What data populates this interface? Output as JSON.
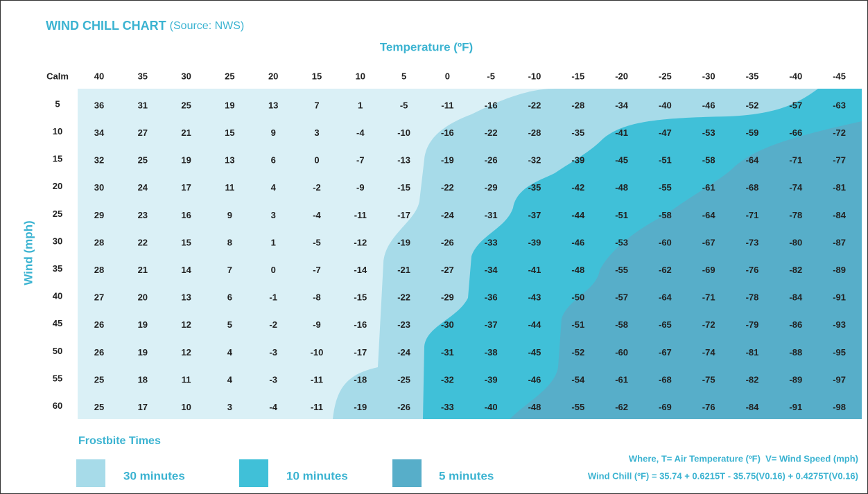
{
  "title": "WIND CHILL CHART",
  "source": "(Source: NWS)",
  "temperature_label": "Temperature (ºF)",
  "wind_label": "Wind (mph)",
  "header": {
    "corner": "Calm",
    "temperatures": [
      40,
      35,
      30,
      25,
      20,
      15,
      10,
      5,
      0,
      -5,
      -10,
      -15,
      -20,
      -25,
      -30,
      -35,
      -40,
      -45
    ]
  },
  "rows": [
    {
      "wind": 5,
      "values": [
        36,
        31,
        25,
        19,
        13,
        7,
        1,
        -5,
        -11,
        -16,
        -22,
        -28,
        -34,
        -40,
        -46,
        -52,
        -57,
        -63
      ]
    },
    {
      "wind": 10,
      "values": [
        34,
        27,
        21,
        15,
        9,
        3,
        -4,
        -10,
        -16,
        -22,
        -28,
        -35,
        -41,
        -47,
        -53,
        -59,
        -66,
        -72
      ]
    },
    {
      "wind": 15,
      "values": [
        32,
        25,
        19,
        13,
        6,
        0,
        -7,
        -13,
        -19,
        -26,
        -32,
        -39,
        -45,
        -51,
        -58,
        -64,
        -71,
        -77
      ]
    },
    {
      "wind": 20,
      "values": [
        30,
        24,
        17,
        11,
        4,
        -2,
        -9,
        -15,
        -22,
        -29,
        -35,
        -42,
        -48,
        -55,
        -61,
        -68,
        -74,
        -81
      ]
    },
    {
      "wind": 25,
      "values": [
        29,
        23,
        16,
        9,
        3,
        -4,
        -11,
        -17,
        -24,
        -31,
        -37,
        -44,
        -51,
        -58,
        -64,
        -71,
        -78,
        -84
      ]
    },
    {
      "wind": 30,
      "values": [
        28,
        22,
        15,
        8,
        1,
        -5,
        -12,
        -19,
        -26,
        -33,
        -39,
        -46,
        -53,
        -60,
        -67,
        -73,
        -80,
        -87
      ]
    },
    {
      "wind": 35,
      "values": [
        28,
        21,
        14,
        7,
        0,
        -7,
        -14,
        -21,
        -27,
        -34,
        -41,
        -48,
        -55,
        -62,
        -69,
        -76,
        -82,
        -89
      ]
    },
    {
      "wind": 40,
      "values": [
        27,
        20,
        13,
        6,
        -1,
        -8,
        -15,
        -22,
        -29,
        -36,
        -43,
        -50,
        -57,
        -64,
        -71,
        -78,
        -84,
        -91
      ]
    },
    {
      "wind": 45,
      "values": [
        26,
        19,
        12,
        5,
        -2,
        -9,
        -16,
        -23,
        -30,
        -37,
        -44,
        -51,
        -58,
        -65,
        -72,
        -79,
        -86,
        -93
      ]
    },
    {
      "wind": 50,
      "values": [
        26,
        19,
        12,
        4,
        -3,
        -10,
        -17,
        -24,
        -31,
        -38,
        -45,
        -52,
        -60,
        -67,
        -74,
        -81,
        -88,
        -95
      ]
    },
    {
      "wind": 55,
      "values": [
        25,
        18,
        11,
        4,
        -3,
        -11,
        -18,
        -25,
        -32,
        -39,
        -46,
        -54,
        -61,
        -68,
        -75,
        -82,
        -89,
        -97
      ]
    },
    {
      "wind": 60,
      "values": [
        25,
        17,
        10,
        3,
        -4,
        -11,
        -19,
        -26,
        -33,
        -40,
        -48,
        -55,
        -62,
        -69,
        -76,
        -84,
        -91,
        -98
      ]
    }
  ],
  "legend": {
    "title": "Frostbite Times",
    "items": [
      "30 minutes",
      "10 minutes",
      "5 minutes"
    ]
  },
  "formula": {
    "where": "Where, T= Air Temperature (ºF)  V= Wind Speed (mph)",
    "equation": "Wind Chill (ºF) = 35.74 + 0.6215T - 35.75(V0.16) + 0.4275T(V0.16)"
  }
}
